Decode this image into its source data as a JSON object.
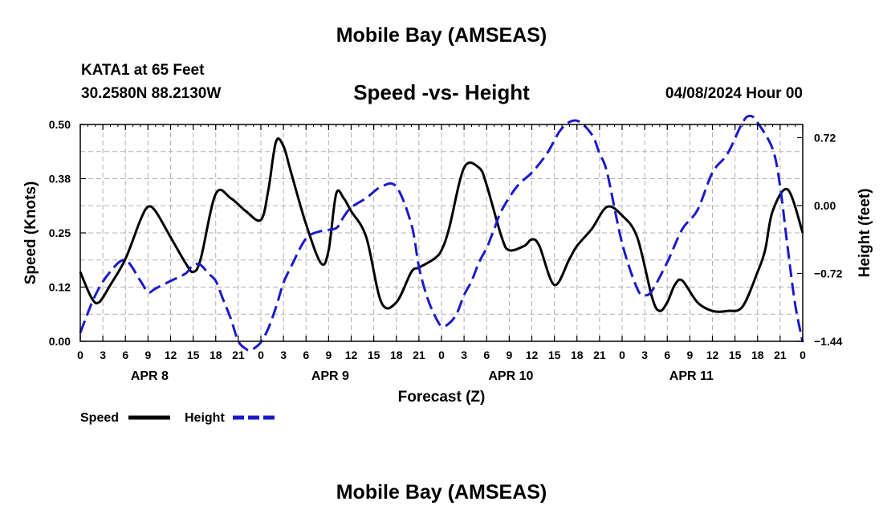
{
  "header": {
    "title": "Mobile Bay (AMSEAS)",
    "station": "KATA1 at 65 Feet",
    "coords": "30.2580N  88.2130W",
    "subtitle": "Speed -vs- Height",
    "datetime": "04/08/2024 Hour 00",
    "footer_title": "Mobile Bay (AMSEAS)"
  },
  "colors": {
    "speed": "#000000",
    "height": "#1a1acc",
    "grid": "#b0b0b0"
  },
  "chart_data": {
    "type": "line",
    "title": "Speed -vs- Height",
    "xlabel": "Forecast (Z)",
    "ylabel": "Speed (Knots)",
    "y2label": "Height (feet)",
    "xlim": [
      0,
      96
    ],
    "ylim": [
      0,
      0.5
    ],
    "y2lim": [
      -1.44,
      0.86
    ],
    "x_ticks": [
      0,
      3,
      6,
      9,
      12,
      15,
      18,
      21,
      24,
      27,
      30,
      33,
      36,
      39,
      42,
      45,
      48,
      51,
      54,
      57,
      60,
      63,
      66,
      69,
      72,
      75,
      78,
      81,
      84,
      87,
      90,
      93,
      96
    ],
    "x_tick_labels": [
      "0",
      "3",
      "6",
      "9",
      "12",
      "15",
      "18",
      "21",
      "0",
      "3",
      "6",
      "9",
      "12",
      "15",
      "18",
      "21",
      "0",
      "3",
      "6",
      "9",
      "12",
      "15",
      "18",
      "21",
      "0",
      "3",
      "6",
      "9",
      "12",
      "15",
      "18",
      "21",
      "0"
    ],
    "y_ticks": [
      0.0,
      0.125,
      0.25,
      0.375,
      0.5
    ],
    "y_tick_labels": [
      "0.00",
      "0.12",
      "0.25",
      "0.38",
      "0.50"
    ],
    "y2_ticks": [
      -1.44,
      -0.72,
      0.0,
      0.72
    ],
    "y2_tick_labels": [
      "−1.44",
      "−0.72",
      "0.00",
      "0.72"
    ],
    "day_labels": [
      {
        "x": 9,
        "label": "APR 8"
      },
      {
        "x": 33,
        "label": "APR 9"
      },
      {
        "x": 57,
        "label": "APR 10"
      },
      {
        "x": 81,
        "label": "APR 11"
      }
    ],
    "legend": [
      {
        "label": "Speed"
      },
      {
        "label": "Height"
      }
    ],
    "series": [
      {
        "name": "Speed",
        "axis": "left",
        "style": "solid",
        "x": [
          0,
          1.5,
          2.5,
          4,
          6,
          8,
          9,
          10,
          12,
          14,
          15,
          16,
          18,
          20,
          22,
          24,
          25,
          26,
          27,
          28,
          30,
          32,
          33,
          34,
          35,
          36,
          38,
          40,
          42,
          44,
          45,
          47,
          48,
          49,
          51,
          53,
          54,
          56,
          57,
          59,
          60,
          61,
          63,
          65,
          66,
          68,
          70,
          72,
          74,
          76,
          77,
          78,
          79,
          80,
          82,
          84,
          86,
          88,
          90,
          91,
          92,
          94,
          96
        ],
        "values": [
          0.16,
          0.1,
          0.09,
          0.13,
          0.19,
          0.28,
          0.31,
          0.3,
          0.24,
          0.18,
          0.16,
          0.19,
          0.34,
          0.33,
          0.3,
          0.28,
          0.35,
          0.46,
          0.45,
          0.39,
          0.27,
          0.18,
          0.21,
          0.34,
          0.33,
          0.3,
          0.24,
          0.09,
          0.09,
          0.16,
          0.17,
          0.19,
          0.21,
          0.26,
          0.4,
          0.4,
          0.36,
          0.24,
          0.21,
          0.22,
          0.235,
          0.22,
          0.13,
          0.19,
          0.22,
          0.26,
          0.31,
          0.29,
          0.24,
          0.1,
          0.07,
          0.09,
          0.13,
          0.14,
          0.09,
          0.07,
          0.07,
          0.08,
          0.16,
          0.21,
          0.3,
          0.35,
          0.25
        ]
      },
      {
        "name": "Height",
        "axis": "right",
        "style": "dashed",
        "x": [
          0,
          2,
          4,
          6,
          8,
          9,
          10,
          12,
          14,
          15,
          16,
          17,
          18,
          19,
          20,
          21,
          22,
          22.5,
          23,
          24,
          25,
          26,
          27,
          28,
          30,
          32,
          34,
          35,
          36,
          38,
          40,
          42,
          44,
          45,
          46,
          47,
          48,
          49,
          50,
          51,
          52,
          53,
          54,
          55,
          56,
          58,
          60,
          62,
          64,
          66,
          68,
          69,
          70,
          72,
          74,
          75,
          76,
          78,
          80,
          82,
          84,
          86,
          88,
          89,
          90,
          92,
          93,
          94,
          95,
          96
        ],
        "values": [
          -1.35,
          -0.95,
          -0.7,
          -0.58,
          -0.8,
          -0.92,
          -0.88,
          -0.8,
          -0.72,
          -0.63,
          -0.63,
          -0.72,
          -0.8,
          -1.0,
          -1.2,
          -1.44,
          -1.52,
          -1.54,
          -1.52,
          -1.45,
          -1.3,
          -1.08,
          -0.82,
          -0.65,
          -0.35,
          -0.27,
          -0.24,
          -0.12,
          -0.02,
          0.08,
          0.2,
          0.2,
          -0.2,
          -0.65,
          -0.95,
          -1.15,
          -1.28,
          -1.25,
          -1.15,
          -0.95,
          -0.8,
          -0.6,
          -0.45,
          -0.25,
          -0.05,
          0.2,
          0.35,
          0.55,
          0.82,
          0.9,
          0.75,
          0.55,
          0.35,
          -0.4,
          -0.88,
          -0.95,
          -0.9,
          -0.6,
          -0.25,
          -0.05,
          0.35,
          0.55,
          0.88,
          0.95,
          0.88,
          0.6,
          0.2,
          -0.45,
          -1.05,
          -1.45
        ]
      }
    ]
  }
}
